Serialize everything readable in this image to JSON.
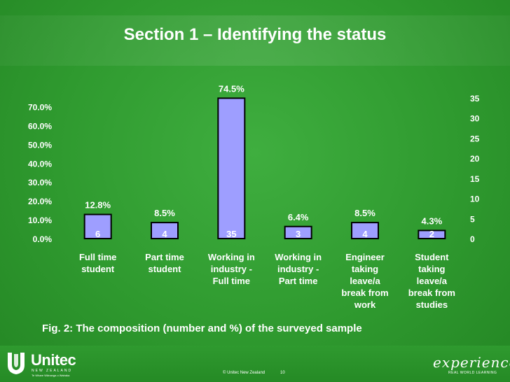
{
  "slide": {
    "title": "Section 1 – Identifying the status",
    "caption": "Fig. 2: The composition (number and %) of the surveyed sample"
  },
  "footer": {
    "logo_name": "Unitec",
    "logo_sub": "NEW ZEALAND",
    "logo_tagline": "Te Whare Wānanga o Wairaka",
    "copyright": "© Unitec New Zealand",
    "page_number": "10",
    "brand_word": "experience",
    "brand_sub": "REAL WORLD LEARNING"
  },
  "colors": {
    "bar_fill": "#9e9eff",
    "bar_border": "#000000",
    "text": "#ffffff"
  },
  "chart_data": {
    "type": "bar",
    "categories": [
      [
        "Full time",
        "student"
      ],
      [
        "Part time",
        "student"
      ],
      [
        "Working in",
        "industry -",
        "Full time"
      ],
      [
        "Working in",
        "industry -",
        "Part time"
      ],
      [
        "Engineer",
        "taking",
        "leave/a",
        "break from",
        "work"
      ],
      [
        "Student",
        "taking",
        "leave/a",
        "break from",
        "studies"
      ]
    ],
    "counts": [
      6,
      4,
      35,
      3,
      4,
      2
    ],
    "percent_labels": [
      "12.8%",
      "8.5%",
      "74.5%",
      "6.4%",
      "8.5%",
      "4.3%"
    ],
    "percent_values": [
      12.8,
      8.5,
      74.5,
      6.4,
      8.5,
      4.3
    ],
    "left_axis": {
      "min": 0,
      "max": 70,
      "step": 10,
      "tick_labels": [
        "0.0%",
        "10.0%",
        "20.0%",
        "30.0%",
        "40.0%",
        "50.0%",
        "60.0%",
        "70.0%"
      ]
    },
    "right_axis": {
      "min": 0,
      "max": 35,
      "step": 5,
      "tick_labels": [
        "0",
        "5",
        "10",
        "15",
        "20",
        "25",
        "30",
        "35"
      ]
    },
    "grid": false
  }
}
